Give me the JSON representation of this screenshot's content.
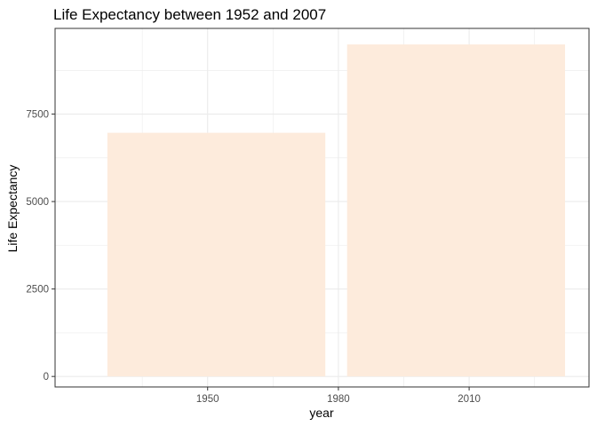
{
  "chart_data": {
    "type": "bar",
    "title": "Life Expectancy between 1952 and 2007",
    "xlabel": "year",
    "ylabel": "Life Expectancy",
    "bars": [
      {
        "x_start": 1927,
        "x_end": 1977,
        "value": 6966
      },
      {
        "x_start": 1982,
        "x_end": 2032,
        "value": 9492
      }
    ],
    "xlim": [
      1915,
      2037.5
    ],
    "ylim": [
      -300,
      9950
    ],
    "x_ticks": [
      1950,
      1980,
      2010
    ],
    "x_tick_labels": [
      "1950",
      "1980",
      "2010"
    ],
    "x_minor_ticks": [
      1935,
      1965,
      1995,
      2025
    ],
    "y_ticks": [
      0,
      2500,
      5000,
      7500
    ],
    "y_tick_labels": [
      "0",
      "2500",
      "5000",
      "7500"
    ],
    "y_minor_ticks": [
      1250,
      3750,
      6250,
      8750
    ],
    "grid": true,
    "legend": "none",
    "bar_color": "#FDEBDC",
    "grid_color": "#EBEBEB",
    "panel_border_color": "#333333"
  }
}
